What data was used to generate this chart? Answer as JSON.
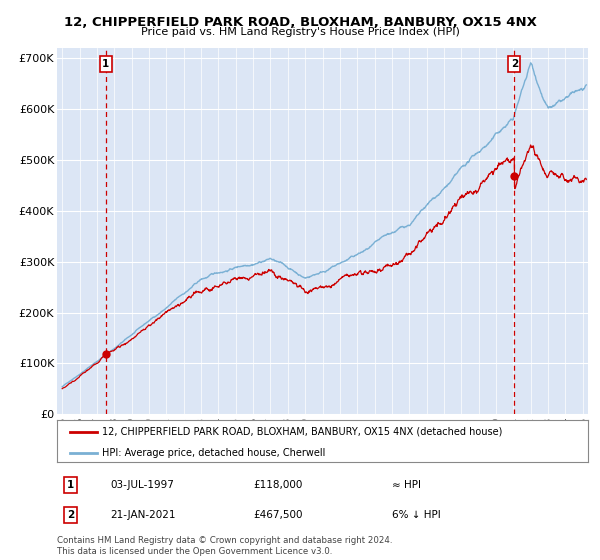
{
  "title_line1": "12, CHIPPERFIELD PARK ROAD, BLOXHAM, BANBURY, OX15 4NX",
  "title_line2": "Price paid vs. HM Land Registry's House Price Index (HPI)",
  "ylabel_ticks": [
    "£0",
    "£100K",
    "£200K",
    "£300K",
    "£400K",
    "£500K",
    "£600K",
    "£700K"
  ],
  "ytick_values": [
    0,
    100000,
    200000,
    300000,
    400000,
    500000,
    600000,
    700000
  ],
  "ylim": [
    0,
    720000
  ],
  "xlim_start": 1994.7,
  "xlim_end": 2025.3,
  "plot_bg_color": "#dce6f5",
  "grid_color": "#ffffff",
  "hpi_color": "#7ab0d4",
  "price_color": "#cc0000",
  "sale1_x": 1997.51,
  "sale1_y": 118000,
  "sale1_label": "1",
  "sale2_x": 2021.05,
  "sale2_y": 467500,
  "sale2_label": "2",
  "legend_line1": "12, CHIPPERFIELD PARK ROAD, BLOXHAM, BANBURY, OX15 4NX (detached house)",
  "legend_line2": "HPI: Average price, detached house, Cherwell",
  "table_row1": [
    "1",
    "03-JUL-1997",
    "£118,000",
    "≈ HPI"
  ],
  "table_row2": [
    "2",
    "21-JAN-2021",
    "£467,500",
    "6% ↓ HPI"
  ],
  "footer": "Contains HM Land Registry data © Crown copyright and database right 2024.\nThis data is licensed under the Open Government Licence v3.0.",
  "vline_color": "#cc0000",
  "vline_style": "--"
}
